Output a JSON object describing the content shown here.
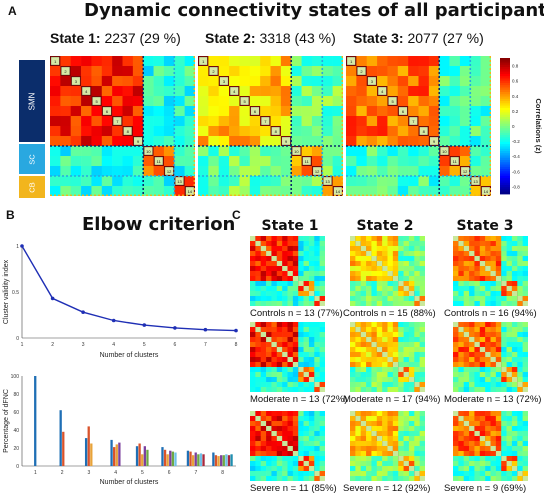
{
  "panel_a": {
    "letter": "A",
    "title": "Dynamic connectivity states of all participants",
    "states": [
      {
        "label": "State 1:",
        "count": "2237",
        "pct": "(29 %)"
      },
      {
        "label": "State 2:",
        "count": "3318",
        "pct": "(43 %)"
      },
      {
        "label": "State 3:",
        "count": "2077",
        "pct": "(27 %)"
      }
    ],
    "networks": [
      "SMN",
      "SC",
      "CB"
    ],
    "network_colors": {
      "SMN": "#0b2d6b",
      "SC": "#29a8e0",
      "CB": "#f2b51d"
    },
    "colorbar": {
      "label": "Correlations (z)",
      "ticks": [
        "0.8",
        "0.6",
        "0.4",
        "0.2",
        "0",
        "-0.2",
        "-0.4",
        "-0.6",
        "-0.8"
      ]
    }
  },
  "panel_b": {
    "letter": "B",
    "title": "Elbow criterion"
  },
  "panel_c": {
    "letter": "C",
    "columns": [
      "State 1",
      "State 2",
      "State 3"
    ],
    "rows": [
      {
        "group": "Controls",
        "labels": [
          "Controls n = 13 (77%)",
          "Controls n = 15 (88%)",
          "Controls n = 16 (94%)"
        ]
      },
      {
        "group": "Moderate",
        "labels": [
          "Moderate n = 13 (72%)",
          "Moderate n = 17 (94%)",
          "Moderate n = 13 (72%)"
        ]
      },
      {
        "group": "Severe",
        "labels": [
          "Severe n = 11 (85%)",
          "Severe n = 12 (92%)",
          "Severe n = 9 (69%)"
        ]
      }
    ]
  },
  "chart_data": [
    {
      "type": "line",
      "xlabel": "Number of clusters",
      "ylabel": "Cluster validity index",
      "x": [
        1,
        2,
        3,
        4,
        5,
        6,
        7,
        8
      ],
      "values": [
        1.0,
        0.43,
        0.28,
        0.19,
        0.14,
        0.11,
        0.09,
        0.08
      ],
      "xlim": [
        1,
        8
      ],
      "ylim": [
        0,
        1
      ],
      "yticks": [
        "0",
        "0.5",
        "1"
      ],
      "xticks": [
        "1",
        "2",
        "3",
        "4",
        "5",
        "6",
        "7",
        "8"
      ],
      "color": "#1f2fb5"
    },
    {
      "type": "bar",
      "xlabel": "Number of clusters",
      "ylabel": "Percentage of dFNC",
      "categories": [
        "1",
        "2",
        "3",
        "4",
        "5",
        "6",
        "7",
        "8"
      ],
      "ylim": [
        0,
        100
      ],
      "yticks": [
        "0",
        "20",
        "40",
        "60",
        "80",
        "100"
      ],
      "colors": [
        "#1f6fb5",
        "#d9532b",
        "#e8a33a",
        "#7b3f9e",
        "#6ea843",
        "#6fc2e8",
        "#a8283c",
        "#1f8fb0"
      ],
      "groups": [
        [
          100
        ],
        [
          62,
          38
        ],
        [
          31,
          44,
          25
        ],
        [
          29,
          21,
          24,
          26
        ],
        [
          22,
          25,
          13,
          22,
          18
        ],
        [
          21,
          18,
          13,
          17,
          16,
          15
        ],
        [
          17,
          16,
          12,
          15,
          13,
          14,
          13
        ],
        [
          15,
          12,
          11,
          12,
          12,
          13,
          12,
          13
        ]
      ]
    }
  ]
}
